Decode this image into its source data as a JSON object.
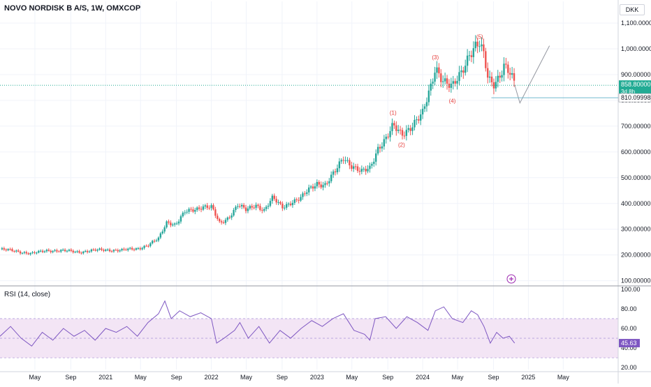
{
  "header": {
    "symbol": "NOVO NORDISK B A/S, 1W, OMXCOP",
    "currency": "DKK"
  },
  "price_badges": {
    "last": "858.80000",
    "countdown": "3d 8h",
    "target": "810.09998"
  },
  "rsi": {
    "title": "RSI (14, close)",
    "value_label": "45.63"
  },
  "colors": {
    "up": "#26a69a",
    "down": "#ef5350",
    "rsi_line": "#7e57c2",
    "rsi_band": "#f3e5f5",
    "wave_label": "#e53935",
    "last_price": "#22ab94",
    "target": "#131722"
  },
  "chart_data": [
    {
      "type": "line",
      "title": "NOVO NORDISK B A/S, 1W, OMXCOP",
      "xlabel": "",
      "ylabel": "",
      "y_ticks": [
        "1,100.00000",
        "1,000.00000",
        "900.00000",
        "800.00000",
        "700.00000",
        "600.00000",
        "500.00000",
        "400.00000",
        "300.00000",
        "200.00000",
        "100.00000"
      ],
      "y_tick_values": [
        1100,
        1000,
        900,
        800,
        700,
        600,
        500,
        400,
        300,
        200,
        100
      ],
      "x_ticks": [
        "May",
        "Sep",
        "2021",
        "May",
        "Sep",
        "2022",
        "May",
        "Sep",
        "2023",
        "May",
        "Sep",
        "2024",
        "May",
        "Sep",
        "2025",
        "May"
      ],
      "x_tick_values": [
        2020.33,
        2020.67,
        2021.0,
        2021.33,
        2021.67,
        2022.0,
        2022.33,
        2022.67,
        2023.0,
        2023.33,
        2023.67,
        2024.0,
        2024.33,
        2024.67,
        2025.0,
        2025.33
      ],
      "ylim": [
        80,
        1130
      ],
      "xlim": [
        2020.0,
        2025.85
      ],
      "series": [
        {
          "values": [
            [
              2020.0,
              222
            ],
            [
              2020.15,
              215
            ],
            [
              2020.3,
              205
            ],
            [
              2020.45,
              218
            ],
            [
              2020.6,
              216
            ],
            [
              2020.75,
              212
            ],
            [
              2020.9,
              218
            ],
            [
              2021.0,
              220
            ],
            [
              2021.15,
              218
            ],
            [
              2021.3,
              225
            ],
            [
              2021.4,
              238
            ],
            [
              2021.5,
              262
            ],
            [
              2021.58,
              330
            ],
            [
              2021.66,
              318
            ],
            [
              2021.75,
              365
            ],
            [
              2021.83,
              375
            ],
            [
              2021.92,
              390
            ],
            [
              2022.0,
              385
            ],
            [
              2022.08,
              320
            ],
            [
              2022.16,
              345
            ],
            [
              2022.25,
              395
            ],
            [
              2022.33,
              372
            ],
            [
              2022.42,
              395
            ],
            [
              2022.5,
              375
            ],
            [
              2022.58,
              420
            ],
            [
              2022.67,
              385
            ],
            [
              2022.75,
              405
            ],
            [
              2022.85,
              420
            ],
            [
              2022.92,
              452
            ],
            [
              2023.0,
              480
            ],
            [
              2023.08,
              472
            ],
            [
              2023.17,
              520
            ],
            [
              2023.25,
              580
            ],
            [
              2023.33,
              548
            ],
            [
              2023.42,
              520
            ],
            [
              2023.5,
              535
            ],
            [
              2023.58,
              620
            ],
            [
              2023.66,
              655
            ],
            [
              2023.72,
              698
            ],
            [
              2023.8,
              668
            ],
            [
              2023.9,
              705
            ],
            [
              2024.0,
              745
            ],
            [
              2024.08,
              858
            ],
            [
              2024.12,
              935
            ],
            [
              2024.2,
              875
            ],
            [
              2024.28,
              845
            ],
            [
              2024.36,
              905
            ],
            [
              2024.44,
              985
            ],
            [
              2024.5,
              1010
            ],
            [
              2024.54,
              1015
            ],
            [
              2024.58,
              965
            ],
            [
              2024.62,
              880
            ],
            [
              2024.67,
              868
            ],
            [
              2024.72,
              895
            ],
            [
              2024.77,
              935
            ],
            [
              2024.82,
              905
            ],
            [
              2024.87,
              858
            ]
          ]
        }
      ],
      "annotations": [
        {
          "text": "(1)",
          "x": 2023.72,
          "y": 745
        },
        {
          "text": "(2)",
          "x": 2023.8,
          "y": 620
        },
        {
          "text": "(3)",
          "x": 2024.12,
          "y": 960
        },
        {
          "text": "(4)",
          "x": 2024.28,
          "y": 790
        },
        {
          "text": "(5)",
          "x": 2024.54,
          "y": 1040
        }
      ],
      "projection": [
        [
          2024.87,
          860
        ],
        [
          2024.92,
          790
        ],
        [
          2025.2,
          1012
        ]
      ],
      "target_line": {
        "value": 810.09998,
        "x_start": 2024.65
      },
      "last_price_line": 858.8
    },
    {
      "type": "line",
      "title": "RSI (14, close)",
      "y_ticks": [
        "100.00",
        "80.00",
        "60.00",
        "40.00",
        "20.00"
      ],
      "y_tick_values": [
        100,
        80,
        60,
        40,
        20
      ],
      "band": [
        30,
        70
      ],
      "ylim": [
        18,
        102
      ],
      "xlim": [
        2020.0,
        2025.85
      ],
      "series": [
        {
          "values": [
            [
              2020.0,
              52
            ],
            [
              2020.1,
              62
            ],
            [
              2020.2,
              50
            ],
            [
              2020.3,
              42
            ],
            [
              2020.4,
              56
            ],
            [
              2020.5,
              48
            ],
            [
              2020.6,
              60
            ],
            [
              2020.7,
              52
            ],
            [
              2020.8,
              58
            ],
            [
              2020.9,
              48
            ],
            [
              2021.0,
              60
            ],
            [
              2021.1,
              56
            ],
            [
              2021.2,
              62
            ],
            [
              2021.3,
              52
            ],
            [
              2021.4,
              66
            ],
            [
              2021.5,
              75
            ],
            [
              2021.56,
              88
            ],
            [
              2021.62,
              70
            ],
            [
              2021.7,
              78
            ],
            [
              2021.8,
              72
            ],
            [
              2021.9,
              76
            ],
            [
              2022.0,
              70
            ],
            [
              2022.05,
              45
            ],
            [
              2022.12,
              50
            ],
            [
              2022.22,
              58
            ],
            [
              2022.27,
              66
            ],
            [
              2022.35,
              50
            ],
            [
              2022.45,
              62
            ],
            [
              2022.55,
              45
            ],
            [
              2022.65,
              58
            ],
            [
              2022.75,
              50
            ],
            [
              2022.85,
              60
            ],
            [
              2022.95,
              68
            ],
            [
              2023.05,
              62
            ],
            [
              2023.15,
              70
            ],
            [
              2023.25,
              75
            ],
            [
              2023.35,
              58
            ],
            [
              2023.45,
              54
            ],
            [
              2023.5,
              48
            ],
            [
              2023.55,
              70
            ],
            [
              2023.65,
              72
            ],
            [
              2023.75,
              60
            ],
            [
              2023.85,
              72
            ],
            [
              2023.95,
              66
            ],
            [
              2024.05,
              58
            ],
            [
              2024.12,
              78
            ],
            [
              2024.2,
              82
            ],
            [
              2024.28,
              70
            ],
            [
              2024.38,
              66
            ],
            [
              2024.46,
              78
            ],
            [
              2024.52,
              74
            ],
            [
              2024.58,
              62
            ],
            [
              2024.64,
              45
            ],
            [
              2024.7,
              56
            ],
            [
              2024.76,
              50
            ],
            [
              2024.82,
              52
            ],
            [
              2024.87,
              45
            ]
          ]
        }
      ]
    }
  ]
}
